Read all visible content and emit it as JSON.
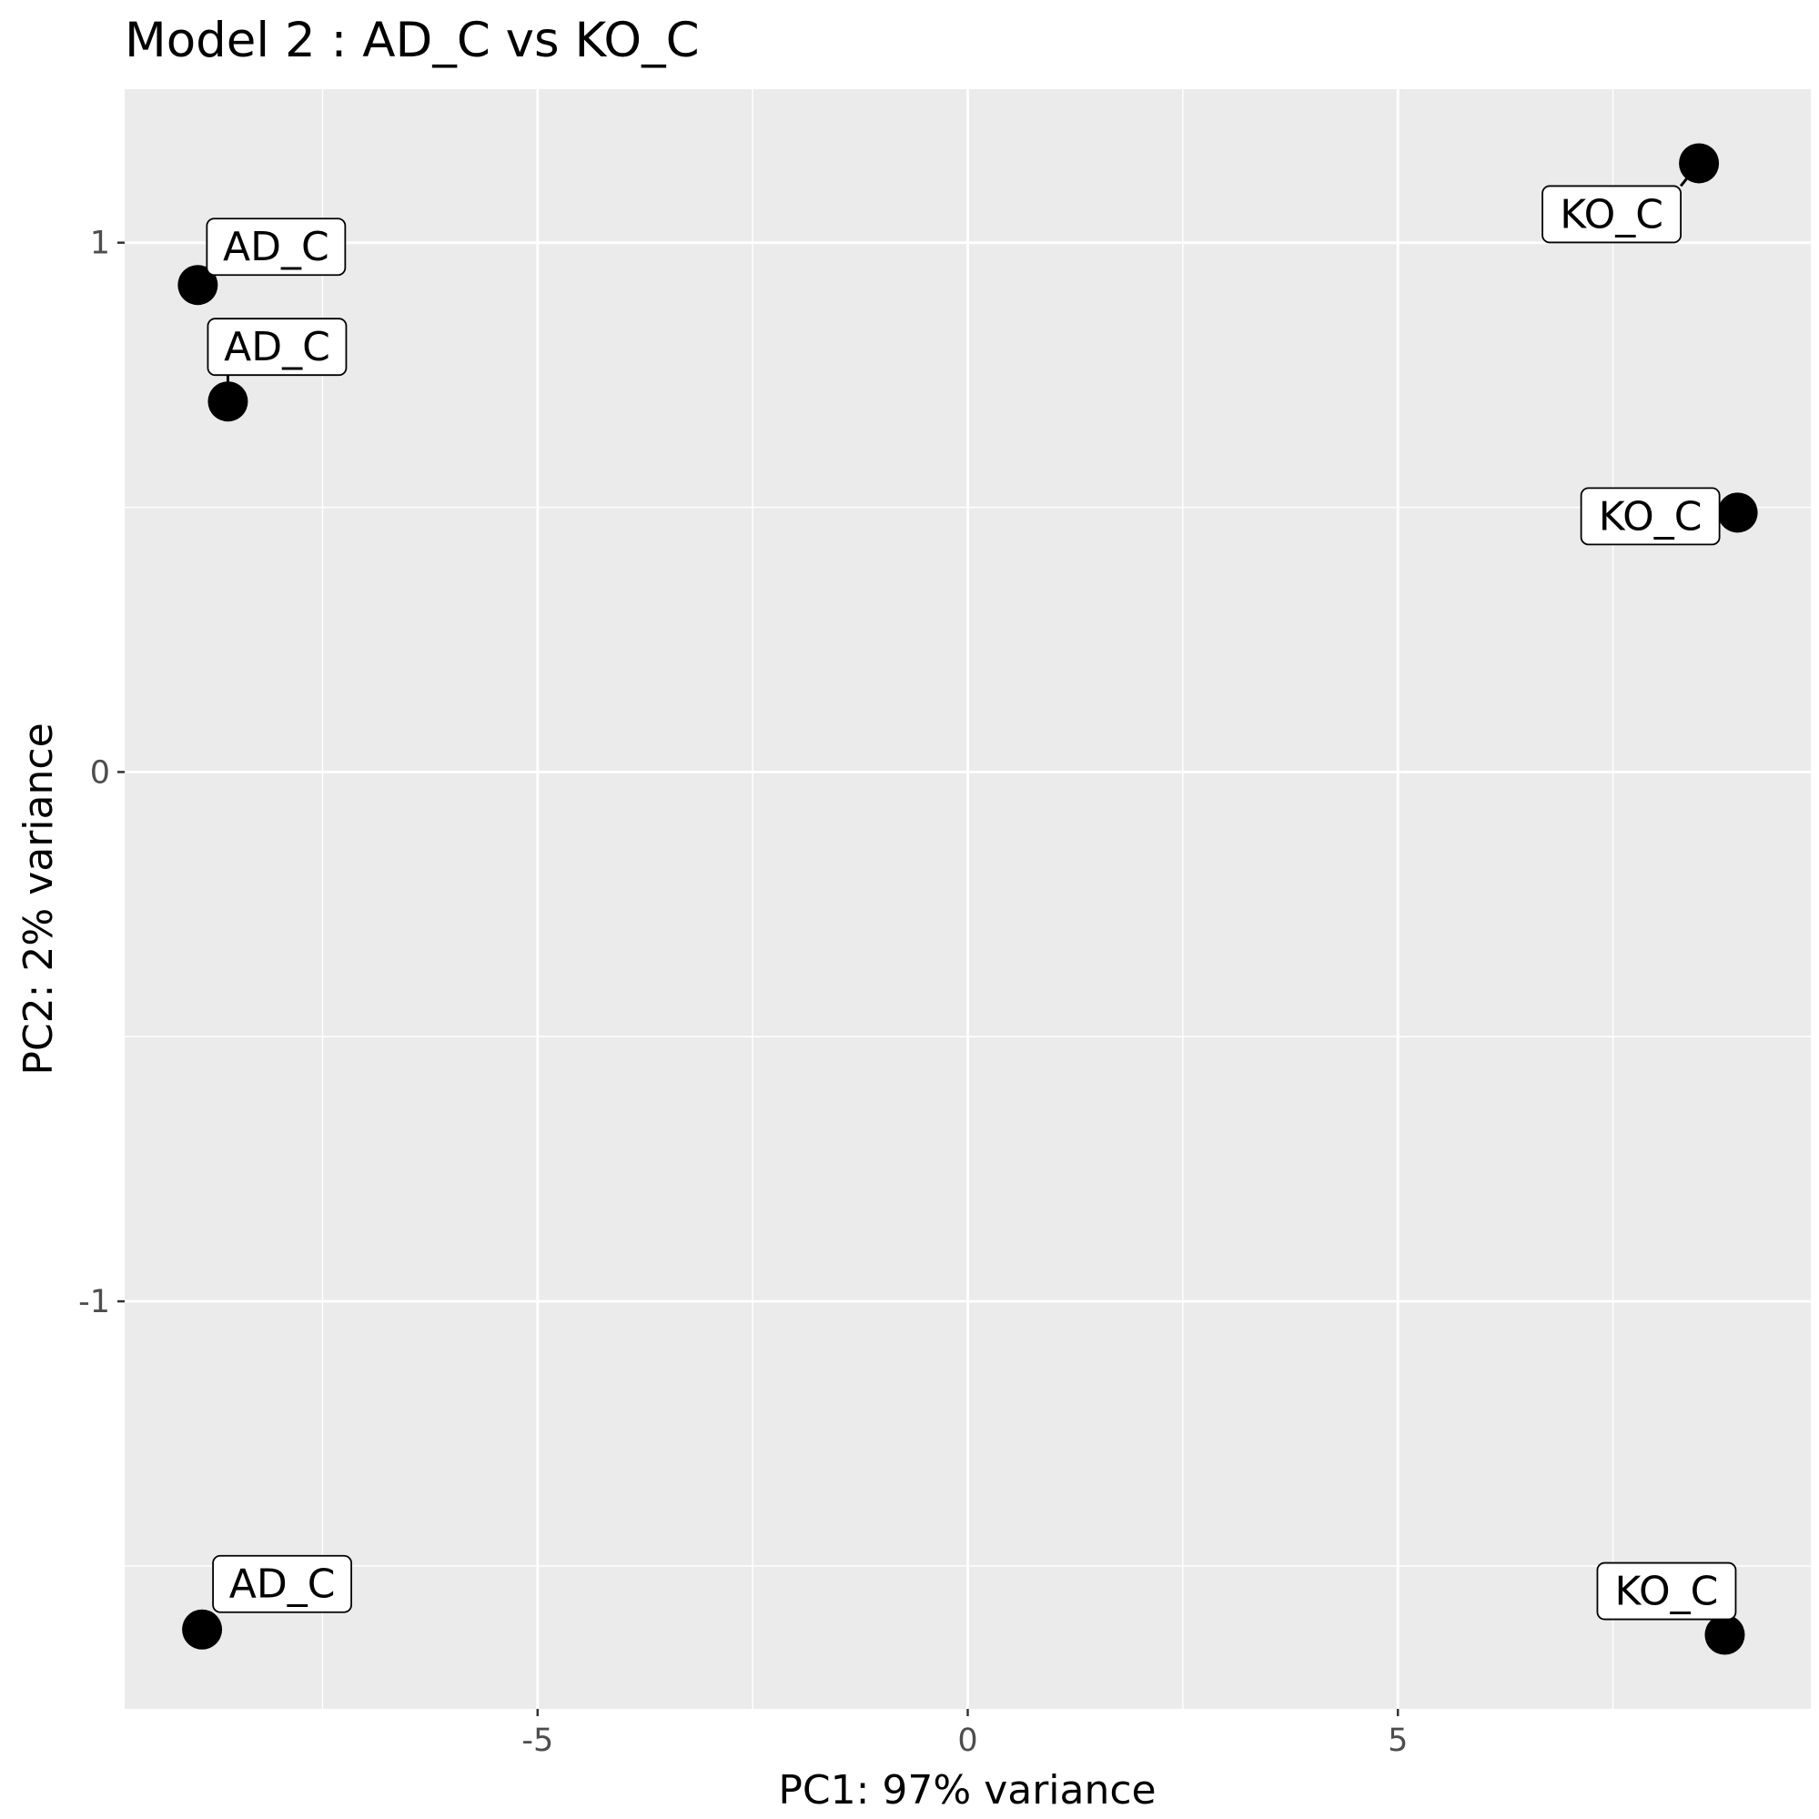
{
  "chart_data": {
    "type": "scatter",
    "title": "Model 2 : AD_C vs KO_C",
    "xlabel": "PC1: 97% variance",
    "ylabel": "PC2: 2% variance",
    "xlim": [
      -9.8,
      9.8
    ],
    "ylim": [
      -1.77,
      1.29
    ],
    "x_ticks": [
      -5,
      0,
      5
    ],
    "x_tick_labels": [
      "-5",
      "0",
      "5"
    ],
    "y_ticks": [
      -1,
      0,
      1
    ],
    "y_tick_labels": [
      "-1",
      "0",
      "1"
    ],
    "grid": true,
    "legend": "none",
    "points": [
      {
        "x": -8.95,
        "y": 0.92,
        "label": "AD_C"
      },
      {
        "x": -8.6,
        "y": 0.7,
        "label": "AD_C"
      },
      {
        "x": -8.9,
        "y": -1.62,
        "label": "AD_C"
      },
      {
        "x": 8.5,
        "y": 1.15,
        "label": "KO_C"
      },
      {
        "x": 8.95,
        "y": 0.49,
        "label": "KO_C"
      },
      {
        "x": 8.8,
        "y": -1.63,
        "label": "KO_C"
      }
    ],
    "colors": {
      "panel": "#ebebeb",
      "grid": "#ffffff",
      "point": "#000000",
      "tick_text": "#4d4d4d"
    }
  }
}
